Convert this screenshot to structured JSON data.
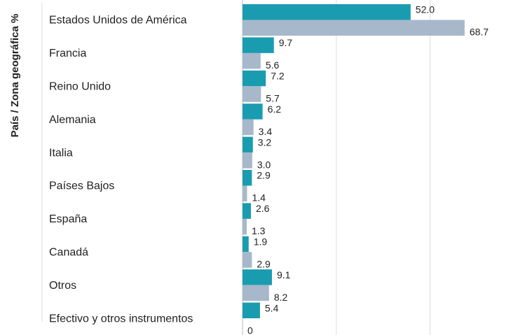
{
  "chart_data": {
    "type": "bar",
    "orientation": "horizontal",
    "y_axis_label": "País / Zona geográfica %",
    "categories": [
      "Estados Unidos de América",
      "Francia",
      "Reino Unido",
      "Alemania",
      "Italia",
      "Países Bajos",
      "España",
      "Canadá",
      "Otros",
      "Efectivo y otros instrumentos"
    ],
    "series": [
      {
        "color": "#1a9cb0",
        "values": [
          52.0,
          9.7,
          7.2,
          6.2,
          3.2,
          2.9,
          2.6,
          1.9,
          9.1,
          5.4
        ],
        "value_labels": [
          "52.0",
          "9.7",
          "7.2",
          "6.2",
          "3.2",
          "2.9",
          "2.6",
          "1.9",
          "9.1",
          "5.4"
        ]
      },
      {
        "color": "#a7b8ca",
        "values": [
          68.7,
          5.6,
          5.7,
          3.4,
          3.0,
          1.4,
          1.3,
          2.9,
          8.2,
          0
        ],
        "value_labels": [
          "68.7",
          "5.6",
          "5.7",
          "3.4",
          "3.0",
          "1.4",
          "1.3",
          "2.9",
          "8.2",
          "0"
        ]
      }
    ],
    "xlim": [
      0,
      85
    ],
    "xticks": [
      0,
      29,
      58
    ],
    "grid": true
  }
}
